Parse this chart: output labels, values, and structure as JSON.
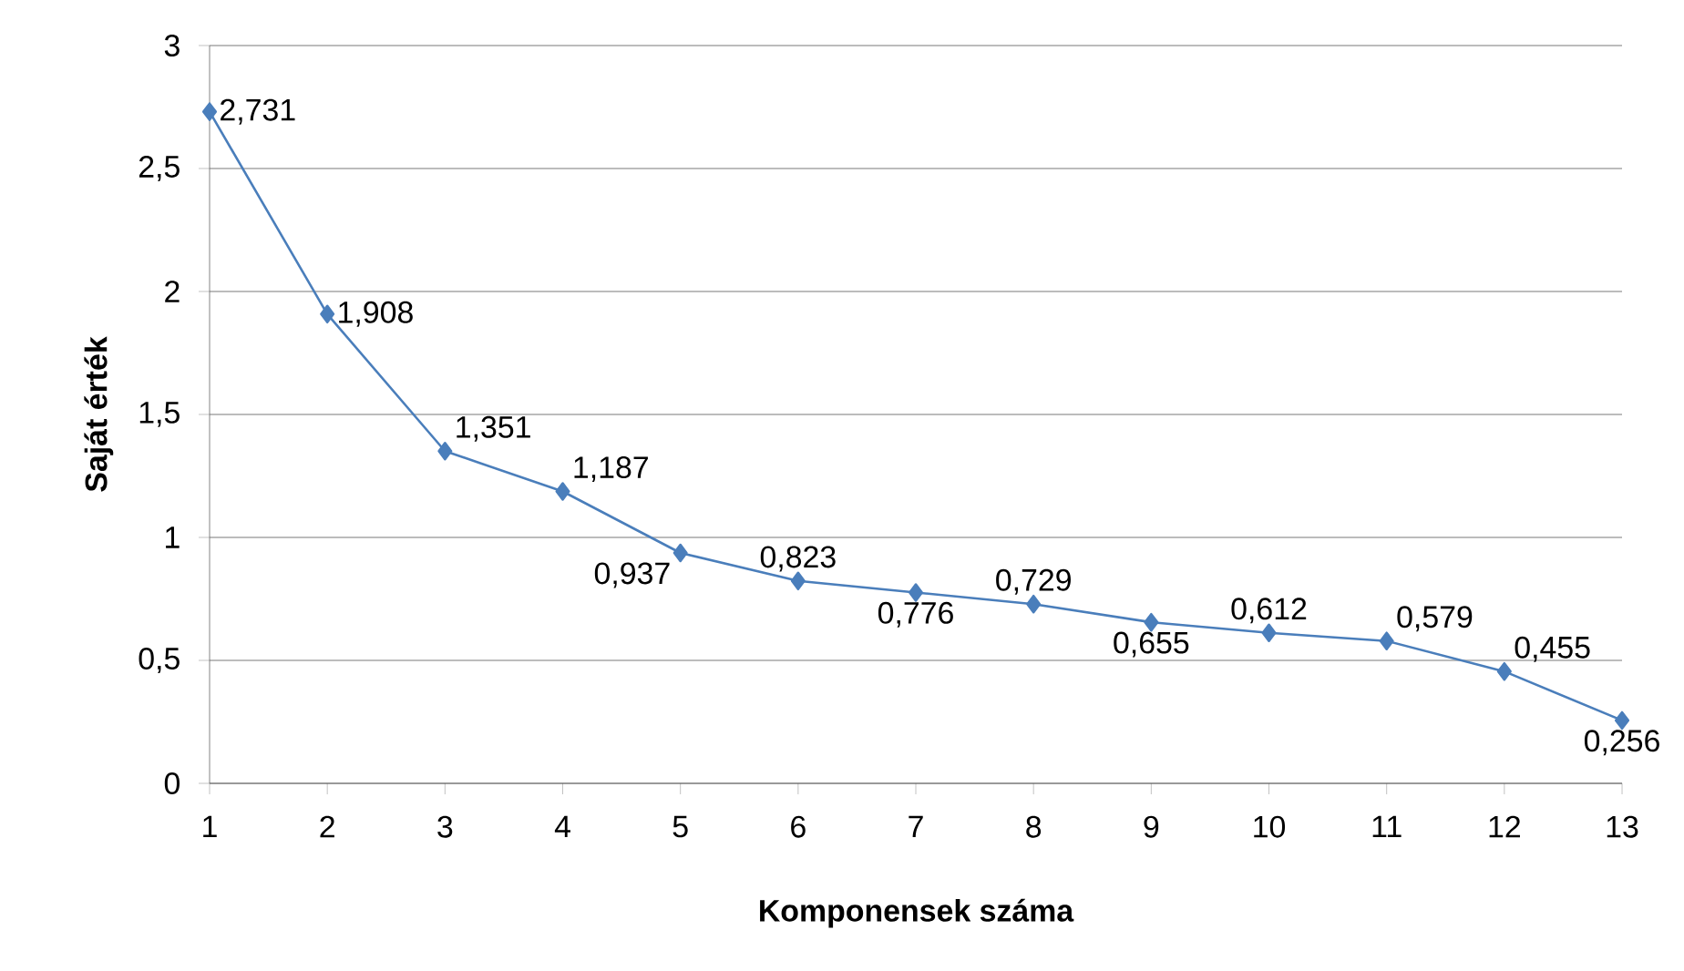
{
  "chart_data": {
    "type": "line",
    "xlabel": "Komponensek száma",
    "ylabel": "Saját érték",
    "x": [
      1,
      2,
      3,
      4,
      5,
      6,
      7,
      8,
      9,
      10,
      11,
      12,
      13
    ],
    "series": [
      {
        "color": "#4a7ebb",
        "values": [
          2.731,
          1.908,
          1.351,
          1.187,
          0.937,
          0.823,
          0.776,
          0.729,
          0.655,
          0.612,
          0.579,
          0.455,
          0.256
        ],
        "value_labels": [
          "2,731",
          "1,908",
          "1,351",
          "1,187",
          "0,937",
          "0,823",
          "0,776",
          "0,729",
          "0,655",
          "0,612",
          "0,579",
          "0,455",
          "0,256"
        ]
      }
    ],
    "xlim": [
      1,
      13
    ],
    "xticks": [
      1,
      2,
      3,
      4,
      5,
      6,
      7,
      8,
      9,
      10,
      11,
      12,
      13
    ],
    "ylim": [
      0,
      3
    ],
    "yticks": [
      0,
      {
        "value": 0.5,
        "label": "0,5"
      },
      1,
      {
        "value": 1.5,
        "label": "1,5"
      },
      2,
      {
        "value": 2.5,
        "label": "2,5"
      },
      3
    ],
    "grid": "y",
    "marker": "diamond",
    "line_style": "solid"
  }
}
